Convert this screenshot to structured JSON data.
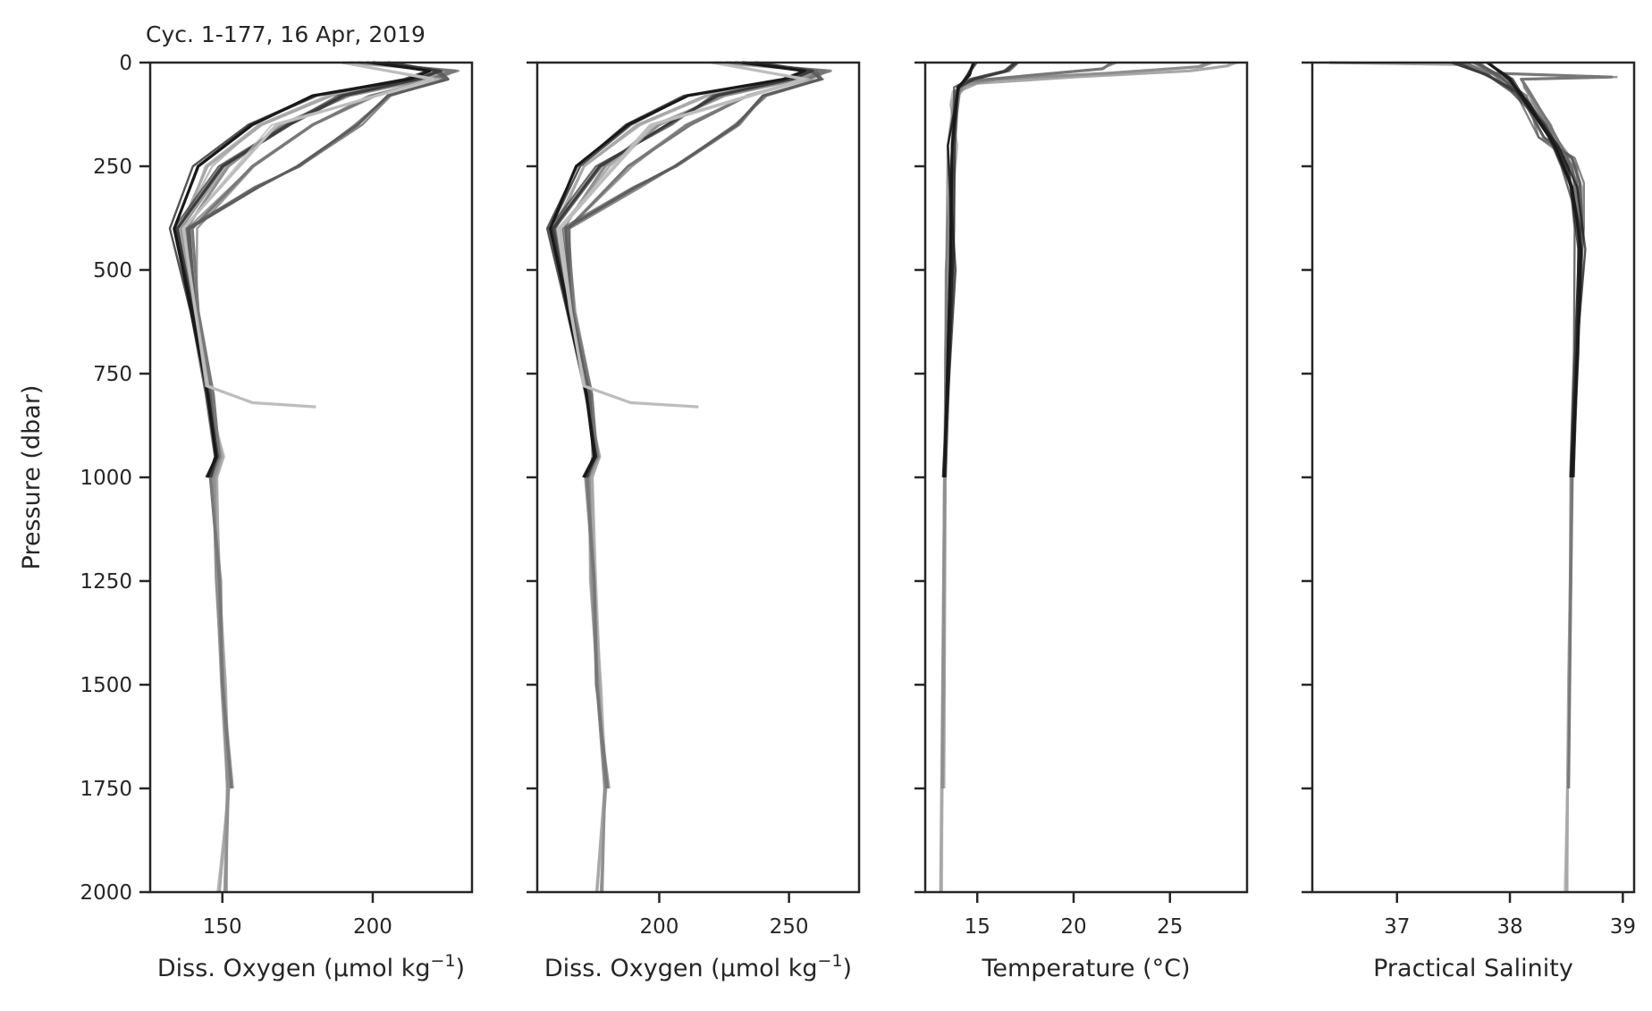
{
  "chart_data": [
    {
      "type": "line",
      "title": "Cyc. 1-177, 16 Apr, 2019",
      "xlabel": "Diss. Oxygen (µmol kg",
      "xlabel_sup": "−1",
      "xlabel_end": ")",
      "ylabel": "Pressure (dbar)",
      "xlim": [
        126,
        233
      ],
      "ylim": [
        2000,
        0
      ],
      "xticks": [
        150,
        200
      ],
      "xtick_labels": [
        "150",
        "200"
      ],
      "yticks": [
        0,
        250,
        500,
        750,
        1000,
        1250,
        1500,
        1750,
        2000
      ],
      "ytick_labels": [
        "0",
        "250",
        "500",
        "750",
        "1000",
        "1250",
        "1500",
        "1750",
        "2000"
      ],
      "series_note": "177 cycles, shaded black (recent) to light grey (early)",
      "series": [
        {
          "shade": "#a8a8a8",
          "pressure": [
            0,
            20,
            40,
            80,
            150,
            250,
            400,
            600,
            800,
            950,
            1000,
            1250,
            1500,
            1750,
            2000
          ],
          "values": [
            192,
            225,
            214,
            186,
            163,
            145,
            136,
            140,
            145,
            150,
            148,
            149,
            151,
            152,
            149
          ]
        },
        {
          "shade": "#909090",
          "pressure": [
            0,
            20,
            40,
            80,
            150,
            250,
            400,
            600,
            800,
            950,
            1000,
            1250,
            1500,
            1750,
            2000
          ],
          "values": [
            195,
            228,
            218,
            192,
            170,
            152,
            138,
            141,
            146,
            149,
            147,
            148,
            150,
            152,
            151
          ]
        },
        {
          "shade": "#787878",
          "pressure": [
            0,
            20,
            40,
            80,
            150,
            250,
            400,
            600,
            800,
            950,
            1000,
            1250,
            1500,
            1750
          ],
          "values": [
            198,
            226,
            220,
            200,
            180,
            160,
            140,
            142,
            147,
            149,
            146,
            149,
            150,
            153
          ]
        },
        {
          "shade": "#5e5e5e",
          "pressure": [
            0,
            20,
            40,
            80,
            150,
            250,
            300,
            400,
            600,
            800,
            950,
            1000
          ],
          "values": [
            200,
            222,
            225,
            205,
            195,
            175,
            162,
            139,
            141,
            146,
            148,
            146
          ]
        },
        {
          "shade": "#3e3e3e",
          "pressure": [
            0,
            20,
            40,
            80,
            150,
            250,
            400,
            600,
            800,
            950,
            1000
          ],
          "values": [
            205,
            222,
            215,
            190,
            172,
            150,
            135,
            140,
            145,
            148,
            146
          ]
        },
        {
          "shade": "#1a1a1a",
          "pressure": [
            0,
            20,
            40,
            80,
            150,
            250,
            400,
            600,
            800,
            950,
            1000
          ],
          "values": [
            200,
            219,
            212,
            180,
            160,
            142,
            134,
            140,
            145,
            148,
            145
          ]
        },
        {
          "shade": "#bdbdbd",
          "pressure": [
            0,
            40,
            150,
            400,
            600,
            780,
            820,
            830
          ],
          "values": [
            190,
            220,
            168,
            137,
            141,
            145,
            160,
            181
          ]
        }
      ]
    },
    {
      "type": "line",
      "xlabel": "Diss. Oxygen (µmol kg",
      "xlabel_sup": "−1",
      "xlabel_end": ")",
      "xlim": [
        153,
        277
      ],
      "ylim": [
        2000,
        0
      ],
      "xticks": [
        200,
        250
      ],
      "xtick_labels": [
        "200",
        "250"
      ],
      "series": [
        {
          "shade": "#a8a8a8",
          "pressure": [
            0,
            20,
            40,
            80,
            150,
            250,
            400,
            600,
            800,
            950,
            1000,
            1250,
            1500,
            1750,
            2000
          ],
          "values": [
            222,
            262,
            250,
            218,
            192,
            171,
            160,
            165,
            172,
            177,
            174,
            175,
            177,
            179,
            176
          ]
        },
        {
          "shade": "#909090",
          "pressure": [
            0,
            20,
            40,
            80,
            150,
            250,
            400,
            600,
            800,
            950,
            1000,
            1250,
            1500,
            1750,
            2000
          ],
          "values": [
            226,
            266,
            254,
            225,
            200,
            179,
            163,
            166,
            173,
            176,
            173,
            174,
            176,
            179,
            178
          ]
        },
        {
          "shade": "#787878",
          "pressure": [
            0,
            20,
            40,
            80,
            150,
            250,
            400,
            600,
            800,
            950,
            1000,
            1250,
            1500,
            1750
          ],
          "values": [
            229,
            264,
            257,
            234,
            212,
            188,
            165,
            167,
            174,
            176,
            172,
            175,
            176,
            180
          ]
        },
        {
          "shade": "#5e5e5e",
          "pressure": [
            0,
            20,
            40,
            80,
            150,
            250,
            300,
            400,
            600,
            800,
            950,
            1000
          ],
          "values": [
            232,
            259,
            262,
            240,
            230,
            206,
            191,
            164,
            166,
            173,
            175,
            172
          ]
        },
        {
          "shade": "#3e3e3e",
          "pressure": [
            0,
            20,
            40,
            80,
            150,
            250,
            400,
            600,
            800,
            950,
            1000
          ],
          "values": [
            237,
            259,
            251,
            222,
            203,
            177,
            159,
            165,
            172,
            175,
            172
          ]
        },
        {
          "shade": "#1a1a1a",
          "pressure": [
            0,
            20,
            40,
            80,
            150,
            250,
            400,
            600,
            800,
            950,
            1000
          ],
          "values": [
            232,
            256,
            248,
            211,
            188,
            168,
            158,
            165,
            172,
            175,
            171
          ]
        },
        {
          "shade": "#bdbdbd",
          "pressure": [
            0,
            40,
            150,
            400,
            600,
            780,
            820,
            830
          ],
          "values": [
            221,
            256,
            197,
            162,
            166,
            171,
            189,
            215
          ]
        }
      ]
    },
    {
      "type": "line",
      "xlabel": "Temperature (°C)",
      "xlim": [
        12.3,
        29.0
      ],
      "ylim": [
        2000,
        0
      ],
      "xticks": [
        15,
        20,
        25
      ],
      "xtick_labels": [
        "15",
        "20",
        "25"
      ],
      "series": [
        {
          "shade": "#a8a8a8",
          "pressure": [
            0,
            8,
            20,
            35,
            50,
            70,
            100,
            200,
            400,
            700,
            1000,
            1500,
            2000
          ],
          "values": [
            28.3,
            28.0,
            26.0,
            20.0,
            15.0,
            14.0,
            13.8,
            13.7,
            13.6,
            13.4,
            13.3,
            13.2,
            13.1
          ]
        },
        {
          "shade": "#909090",
          "pressure": [
            0,
            10,
            25,
            40,
            55,
            80,
            200,
            400,
            1000,
            1750
          ],
          "values": [
            27.0,
            26.5,
            22.0,
            16.0,
            14.2,
            13.9,
            13.7,
            13.6,
            13.3,
            13.2
          ]
        },
        {
          "shade": "#787878",
          "pressure": [
            0,
            15,
            30,
            45,
            70,
            200,
            500,
            1000
          ],
          "values": [
            22.0,
            21.5,
            18.0,
            14.5,
            13.9,
            13.7,
            13.6,
            13.3
          ]
        },
        {
          "shade": "#3e3e3e",
          "pressure": [
            0,
            20,
            40,
            60,
            200,
            500,
            1000
          ],
          "values": [
            17.0,
            16.5,
            14.8,
            14.0,
            13.7,
            13.6,
            13.3
          ]
        },
        {
          "shade": "#1a1a1a",
          "pressure": [
            0,
            30,
            60,
            200,
            500,
            1000
          ],
          "values": [
            14.8,
            14.6,
            14.0,
            13.7,
            13.6,
            13.3
          ]
        }
      ]
    },
    {
      "type": "line",
      "xlabel": "Practical Salinity",
      "xlim": [
        36.25,
        39.1
      ],
      "ylim": [
        2000,
        0
      ],
      "xticks": [
        37,
        38,
        39
      ],
      "xtick_labels": [
        "37",
        "38",
        "39"
      ],
      "series": [
        {
          "shade": "#a8a8a8",
          "pressure": [
            0,
            5,
            30,
            60,
            100,
            200,
            300,
            500,
            700,
            1000,
            1500,
            2000
          ],
          "values": [
            36.4,
            37.6,
            37.9,
            38.05,
            38.2,
            38.45,
            38.6,
            38.62,
            38.58,
            38.55,
            38.52,
            38.5
          ]
        },
        {
          "shade": "#787878",
          "pressure": [
            0,
            25,
            35,
            40,
            60,
            150,
            250,
            400,
            700,
            1000,
            1750
          ],
          "values": [
            37.6,
            37.8,
            38.9,
            38.1,
            38.15,
            38.35,
            38.55,
            38.63,
            38.6,
            38.55,
            38.52
          ]
        },
        {
          "shade": "#5e5e5e",
          "pressure": [
            0,
            30,
            80,
            180,
            230,
            290,
            400,
            700,
            1000
          ],
          "values": [
            37.7,
            37.9,
            38.1,
            38.3,
            38.55,
            38.62,
            38.64,
            38.6,
            38.56
          ]
        },
        {
          "shade": "#3e3e3e",
          "pressure": [
            0,
            30,
            70,
            150,
            250,
            400,
            700,
            1000
          ],
          "values": [
            37.5,
            37.8,
            38.05,
            38.3,
            38.5,
            38.62,
            38.58,
            38.54
          ]
        },
        {
          "shade": "#1a1a1a",
          "pressure": [
            0,
            40,
            100,
            200,
            300,
            450,
            700,
            1000
          ],
          "values": [
            37.8,
            38.0,
            38.15,
            38.4,
            38.55,
            38.63,
            38.6,
            38.55
          ]
        }
      ]
    }
  ]
}
